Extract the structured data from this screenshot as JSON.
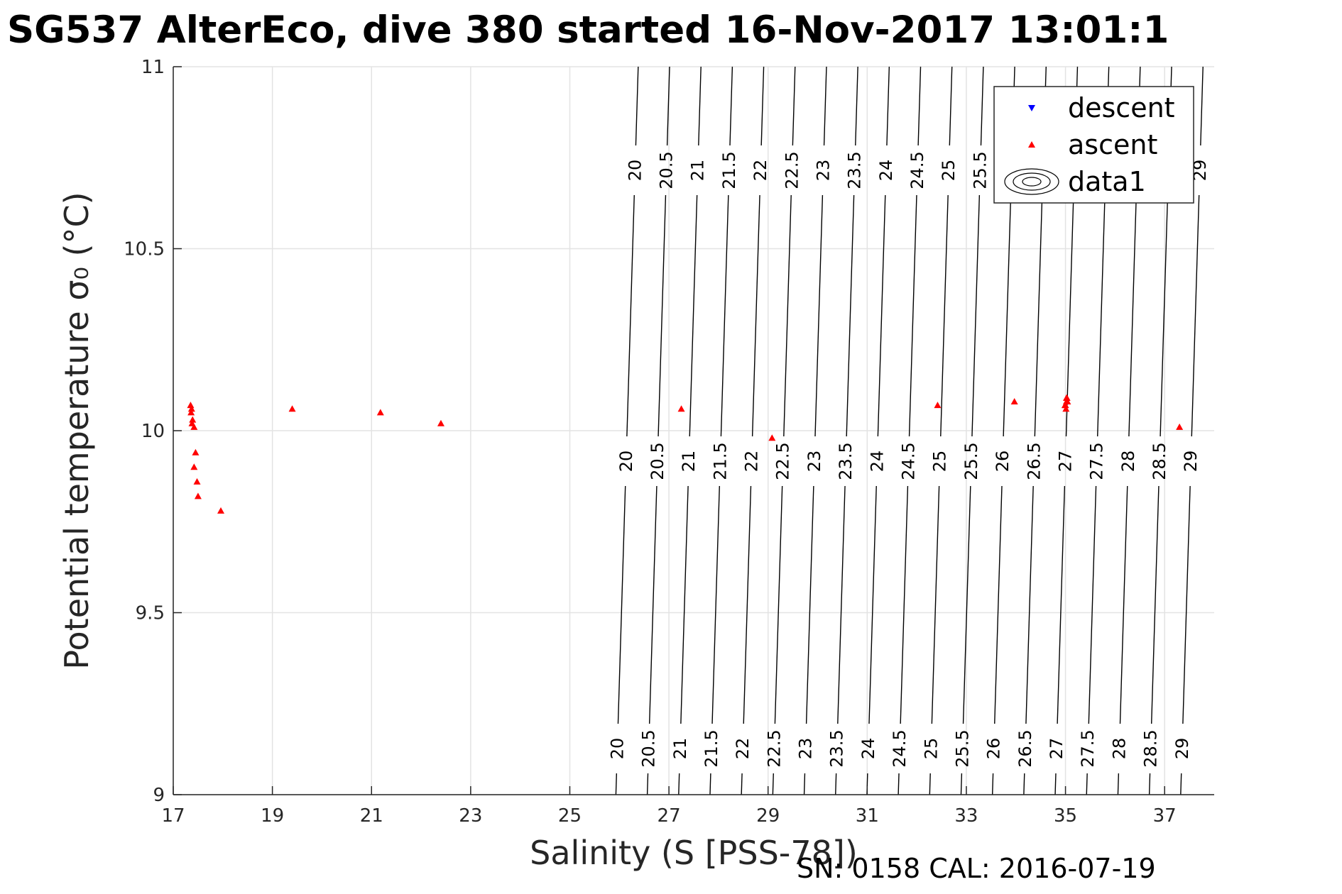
{
  "title": "SG537 AlterEco, dive 380 started 16-Nov-2017 13:01:1",
  "footer": "SN: 0158  CAL: 2016-07-19",
  "chart_data": {
    "type": "scatter",
    "xlabel": "Salinity (S [PSS-78])",
    "ylabel": "Potential temperature σ₀ (°C)",
    "xlim": [
      17,
      38
    ],
    "ylim": [
      9,
      11
    ],
    "x_ticks": [
      "17",
      "19",
      "21",
      "23",
      "25",
      "27",
      "29",
      "31",
      "33",
      "35",
      "37"
    ],
    "y_ticks": [
      "9",
      "9.5",
      "10",
      "10.5",
      "11"
    ],
    "grid": true,
    "legend": {
      "position": "top-right",
      "entries": [
        "descent",
        "ascent",
        "data1"
      ]
    },
    "series": [
      {
        "name": "descent",
        "color": "#0000ff",
        "marker": "triangle-down",
        "points": []
      },
      {
        "name": "ascent",
        "color": "#ff0000",
        "marker": "triangle-up",
        "points": [
          [
            17.35,
            10.07
          ],
          [
            17.37,
            10.06
          ],
          [
            17.36,
            10.05
          ],
          [
            17.39,
            10.03
          ],
          [
            17.38,
            10.02
          ],
          [
            17.42,
            10.01
          ],
          [
            17.45,
            9.94
          ],
          [
            17.42,
            9.9
          ],
          [
            17.48,
            9.86
          ],
          [
            17.5,
            9.82
          ],
          [
            17.96,
            9.78
          ],
          [
            19.4,
            10.06
          ],
          [
            21.18,
            10.05
          ],
          [
            22.4,
            10.02
          ],
          [
            27.25,
            10.06
          ],
          [
            29.08,
            9.98
          ],
          [
            32.42,
            10.07
          ],
          [
            33.97,
            10.08
          ],
          [
            35.0,
            10.07
          ],
          [
            35.02,
            10.08
          ],
          [
            35.03,
            10.09
          ],
          [
            34.99,
            10.07
          ],
          [
            35.01,
            10.06
          ],
          [
            35.04,
            10.08
          ],
          [
            35.02,
            10.09
          ],
          [
            37.3,
            10.01
          ]
        ]
      },
      {
        "name": "data1",
        "color": "#000000",
        "type": "contour",
        "levels": [
          "20",
          "20.5",
          "21",
          "21.5",
          "22",
          "22.5",
          "23",
          "23.5",
          "24",
          "24.5",
          "25",
          "25.5",
          "26",
          "26.5",
          "27",
          "27.5",
          "28",
          "28.5",
          "29"
        ]
      }
    ],
    "contour_labels_shown_at_top": [
      "20",
      "20.5",
      "21",
      "21.5",
      "22",
      "22.5",
      "23",
      "23.5",
      "24",
      "24.5",
      "25",
      "25.5",
      "29"
    ]
  }
}
